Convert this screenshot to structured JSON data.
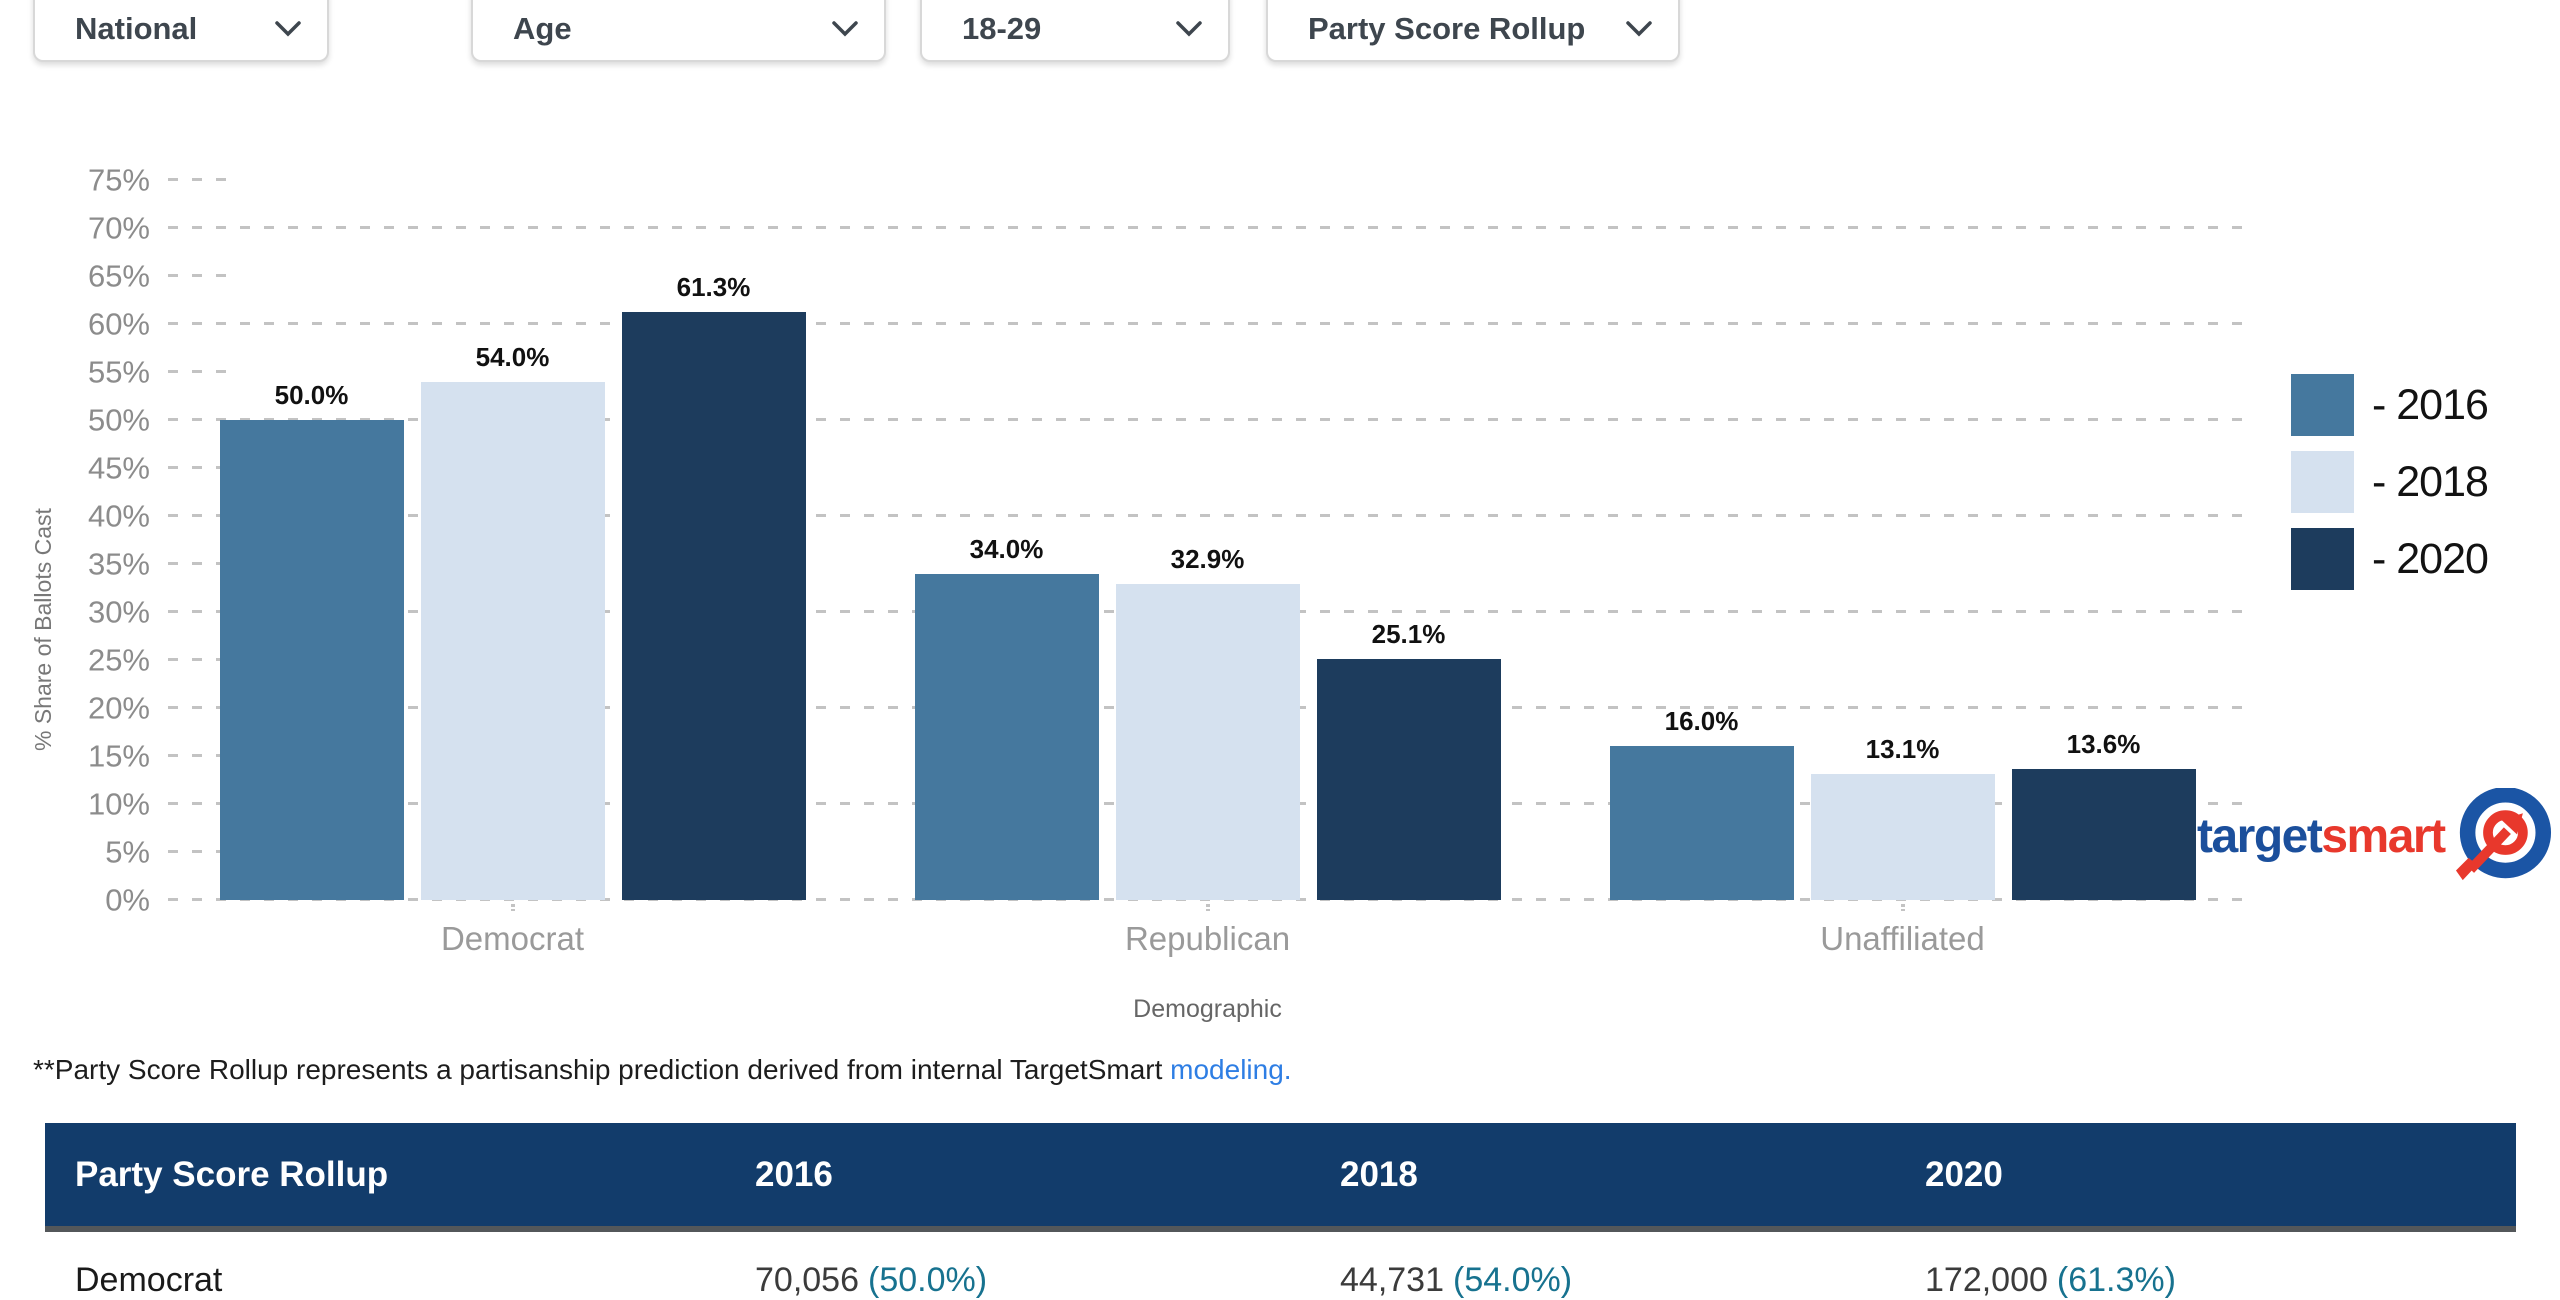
{
  "filters": [
    {
      "label": "National"
    },
    {
      "label": "Age"
    },
    {
      "label": "18-29"
    },
    {
      "label": "Party Score Rollup"
    }
  ],
  "chart_data": {
    "type": "bar",
    "title": "",
    "xlabel": "Demographic",
    "ylabel": "% Share of Ballots Cast",
    "categories": [
      "Democrat",
      "Republican",
      "Unaffiliated"
    ],
    "series": [
      {
        "name": "2016",
        "color": "#45789E",
        "values": [
          50.0,
          34.0,
          16.0
        ]
      },
      {
        "name": "2018",
        "color": "#D5E1EF",
        "values": [
          54.0,
          32.9,
          13.1
        ]
      },
      {
        "name": "2020",
        "color": "#1D3C5D",
        "values": [
          61.3,
          25.1,
          13.6
        ]
      }
    ],
    "bar_value_labels": [
      [
        "50.0%",
        "34.0%",
        "16.0%"
      ],
      [
        "54.0%",
        "32.9%",
        "13.1%"
      ],
      [
        "61.3%",
        "25.1%",
        "13.6%"
      ]
    ],
    "ylim": [
      0,
      75
    ],
    "yticks": [
      "0%",
      "5%",
      "10%",
      "15%",
      "20%",
      "25%",
      "30%",
      "35%",
      "40%",
      "45%",
      "50%",
      "55%",
      "60%",
      "65%",
      "70%",
      "75%"
    ],
    "grid": "horizontal dashed lines at 10% multiples, short ticks at 5% multiples",
    "legend_position": "right",
    "legend_labels": [
      "- 2016",
      "- 2018",
      "- 2020"
    ]
  },
  "footnote": {
    "text": "**Party Score Rollup represents a partisanship prediction derived from internal TargetSmart ",
    "link_text": "modeling."
  },
  "logo": {
    "text_blue": "target",
    "text_red": "smart"
  },
  "table": {
    "headers": [
      "Party Score Rollup",
      "2016",
      "2018",
      "2020"
    ],
    "rows": [
      {
        "label": "Democrat",
        "cells": [
          {
            "count": "70,056",
            "pct": "(50.0%)"
          },
          {
            "count": "44,731",
            "pct": "(54.0%)"
          },
          {
            "count": "172,000",
            "pct": "(61.3%)"
          }
        ]
      }
    ]
  },
  "colors": {
    "bar_2016": "#45789E",
    "bar_2018": "#D5E1EF",
    "bar_2020": "#1D3C5D",
    "table_header_bg": "#123C6B",
    "link_blue": "#2E7EE4",
    "pct_teal": "#17728F",
    "logo_blue": "#1B4F9C",
    "logo_red": "#E8382C",
    "gridline": "#C3C3C3",
    "axis_text": "#8C8C8C"
  }
}
